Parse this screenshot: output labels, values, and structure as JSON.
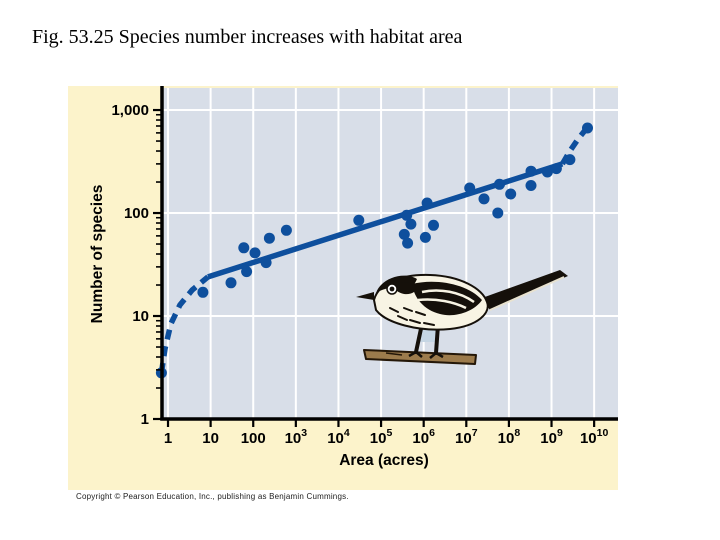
{
  "slide": {
    "title": "Fig. 53.25 Species number increases with habitat area",
    "background": "#ffffff"
  },
  "figure": {
    "panel_bg": "#fcf3cb",
    "plot_bg": "#d8dee8",
    "accent_blue": "#0e4f9d",
    "grid_color": "#ffffff",
    "axis_color": "#000000",
    "copyright": "Copyright © Pearson Education, Inc., publishing as Benjamin Cummings."
  },
  "chart_data": {
    "type": "scatter",
    "xlabel": "Area (acres)",
    "ylabel": "Number of species",
    "x_scale": "log",
    "y_scale": "log",
    "grid": true,
    "x_axis_log_range": [
      -0.141,
      10.56
    ],
    "y_axis_log_range": [
      0,
      3.214
    ],
    "x_ticks": [
      {
        "value": 1,
        "label": "1"
      },
      {
        "value": 10,
        "label": "10"
      },
      {
        "value": 100,
        "label": "100"
      },
      {
        "value": 1000,
        "label": "10^3"
      },
      {
        "value": 10000,
        "label": "10^4"
      },
      {
        "value": 100000,
        "label": "10^5"
      },
      {
        "value": 1000000,
        "label": "10^6"
      },
      {
        "value": 10000000,
        "label": "10^7"
      },
      {
        "value": 100000000,
        "label": "10^8"
      },
      {
        "value": 1000000000,
        "label": "10^9"
      },
      {
        "value": 10000000000,
        "label": "10^10"
      }
    ],
    "y_ticks": [
      {
        "value": 1000,
        "label": "1,000"
      },
      {
        "value": 100,
        "label": "100"
      },
      {
        "value": 10,
        "label": "10"
      },
      {
        "value": 1,
        "label": "1"
      }
    ],
    "points": [
      {
        "area_acres": 0.7,
        "species": 2.8
      },
      {
        "area_acres": 6.6,
        "species": 17
      },
      {
        "area_acres": 30,
        "species": 21
      },
      {
        "area_acres": 60,
        "species": 46
      },
      {
        "area_acres": 70,
        "species": 27
      },
      {
        "area_acres": 110,
        "species": 41
      },
      {
        "area_acres": 200,
        "species": 33
      },
      {
        "area_acres": 240,
        "species": 57
      },
      {
        "area_acres": 600,
        "species": 68
      },
      {
        "area_acres": 30000,
        "species": 85
      },
      {
        "area_acres": 350000,
        "species": 62
      },
      {
        "area_acres": 400000,
        "species": 95
      },
      {
        "area_acres": 420000,
        "species": 51
      },
      {
        "area_acres": 500000,
        "species": 78
      },
      {
        "area_acres": 1100000,
        "species": 58
      },
      {
        "area_acres": 1200000,
        "species": 125
      },
      {
        "area_acres": 1700000,
        "species": 76
      },
      {
        "area_acres": 12000000,
        "species": 175
      },
      {
        "area_acres": 26000000,
        "species": 137
      },
      {
        "area_acres": 55000000,
        "species": 100
      },
      {
        "area_acres": 60000000,
        "species": 190
      },
      {
        "area_acres": 110000000,
        "species": 153
      },
      {
        "area_acres": 330000000,
        "species": 255
      },
      {
        "area_acres": 330000000,
        "species": 185
      },
      {
        "area_acres": 800000000,
        "species": 250
      },
      {
        "area_acres": 1300000000,
        "species": 270
      },
      {
        "area_acres": 2700000000,
        "species": 330
      },
      {
        "area_acres": 7000000000,
        "species": 670
      }
    ],
    "trendline": {
      "segments": [
        {
          "style": "dashed",
          "points": [
            [
              0.7,
              2.8
            ],
            [
              0.85,
              4.8
            ],
            [
              1.17,
              8.4
            ],
            [
              1.9,
              12.8
            ],
            [
              3.7,
              17.9
            ],
            [
              8.7,
              24
            ]
          ]
        },
        {
          "style": "solid",
          "points": [
            [
              8.7,
              24
            ],
            [
              1800000000,
              300
            ]
          ]
        },
        {
          "style": "dashed",
          "points": [
            [
              1800000000,
              300
            ],
            [
              2700000000,
              400
            ],
            [
              4200000000,
              523
            ],
            [
              6200000000,
              640
            ]
          ]
        }
      ]
    }
  }
}
